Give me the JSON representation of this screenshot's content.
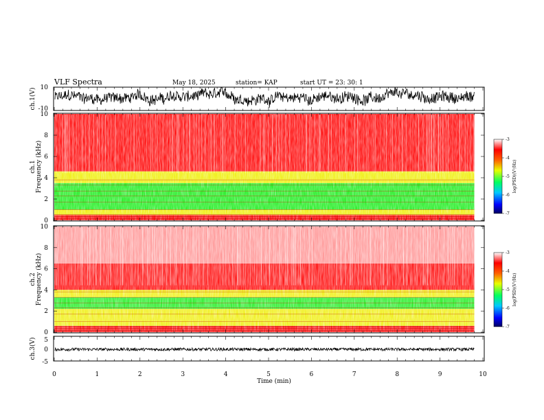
{
  "header": {
    "title": "VLF Spectra",
    "date": "May 18, 2025",
    "station": "station= KAP",
    "start": "start  UT =   23: 30: 1"
  },
  "chart_data": [
    {
      "type": "line",
      "id": "ch1-waveform",
      "ylabel": "ch.1(V)",
      "xlim": [
        0,
        10
      ],
      "ylim": [
        -10,
        10
      ],
      "yticks": [
        "10",
        "-10"
      ],
      "data_end_min": 9.8,
      "series_color": "#000000"
    },
    {
      "type": "heatmap",
      "id": "ch1-spectrogram",
      "ylabel": "ch.1\nFrequency (kHz)",
      "xlim": [
        0,
        10
      ],
      "ylim": [
        0,
        10
      ],
      "yticks": [
        "0",
        "2",
        "4",
        "6",
        "8",
        "10"
      ],
      "data_end_min": 9.8,
      "bands_khz": [
        {
          "from": 0.0,
          "to": 0.5,
          "level": "red"
        },
        {
          "from": 0.5,
          "to": 1.0,
          "level": "yellow"
        },
        {
          "from": 1.0,
          "to": 3.5,
          "level": "green"
        },
        {
          "from": 3.5,
          "to": 4.6,
          "level": "yellow"
        },
        {
          "from": 4.6,
          "to": 10.0,
          "level": "red"
        }
      ],
      "colorbar": {
        "label": "log(PSD)(V²/Hz)",
        "range": [
          -7,
          -3
        ],
        "ticks": [
          "-3",
          "-4",
          "-5",
          "-6",
          "-7"
        ]
      }
    },
    {
      "type": "heatmap",
      "id": "ch2-spectrogram",
      "ylabel": "ch.2\nFrequency (kHz)",
      "xlim": [
        0,
        10
      ],
      "ylim": [
        0,
        10
      ],
      "yticks": [
        "0",
        "2",
        "4",
        "6",
        "8",
        "10"
      ],
      "data_end_min": 9.8,
      "bands_khz": [
        {
          "from": 0.0,
          "to": 0.6,
          "level": "red"
        },
        {
          "from": 0.6,
          "to": 2.2,
          "level": "yellow"
        },
        {
          "from": 2.2,
          "to": 3.3,
          "level": "green"
        },
        {
          "from": 3.3,
          "to": 4.0,
          "level": "yellow"
        },
        {
          "from": 4.0,
          "to": 6.5,
          "level": "red"
        },
        {
          "from": 6.5,
          "to": 10.0,
          "level": "light-red"
        }
      ],
      "colorbar": {
        "label": "log(PSD)(V²/Hz)",
        "range": [
          -7,
          -3
        ],
        "ticks": [
          "-3",
          "-4",
          "-5",
          "-6",
          "-7"
        ]
      }
    },
    {
      "type": "line",
      "id": "ch3-waveform",
      "ylabel": "ch.3(V)",
      "xlim": [
        0,
        10
      ],
      "ylim": [
        -5,
        5
      ],
      "yticks": [
        "5",
        "0",
        "-5"
      ],
      "data_end_min": 9.8,
      "level_v": -0.3,
      "series_color": "#000000"
    }
  ],
  "x_axis": {
    "label": "Time (min)",
    "ticks": [
      "0",
      "1",
      "2",
      "3",
      "4",
      "5",
      "6",
      "7",
      "8",
      "9",
      "10"
    ]
  },
  "colors": {
    "red": "#ff1a1a",
    "light-red": "#ff9a9a",
    "yellow": "#f0f020",
    "green": "#33ee33",
    "line": "#000000"
  }
}
